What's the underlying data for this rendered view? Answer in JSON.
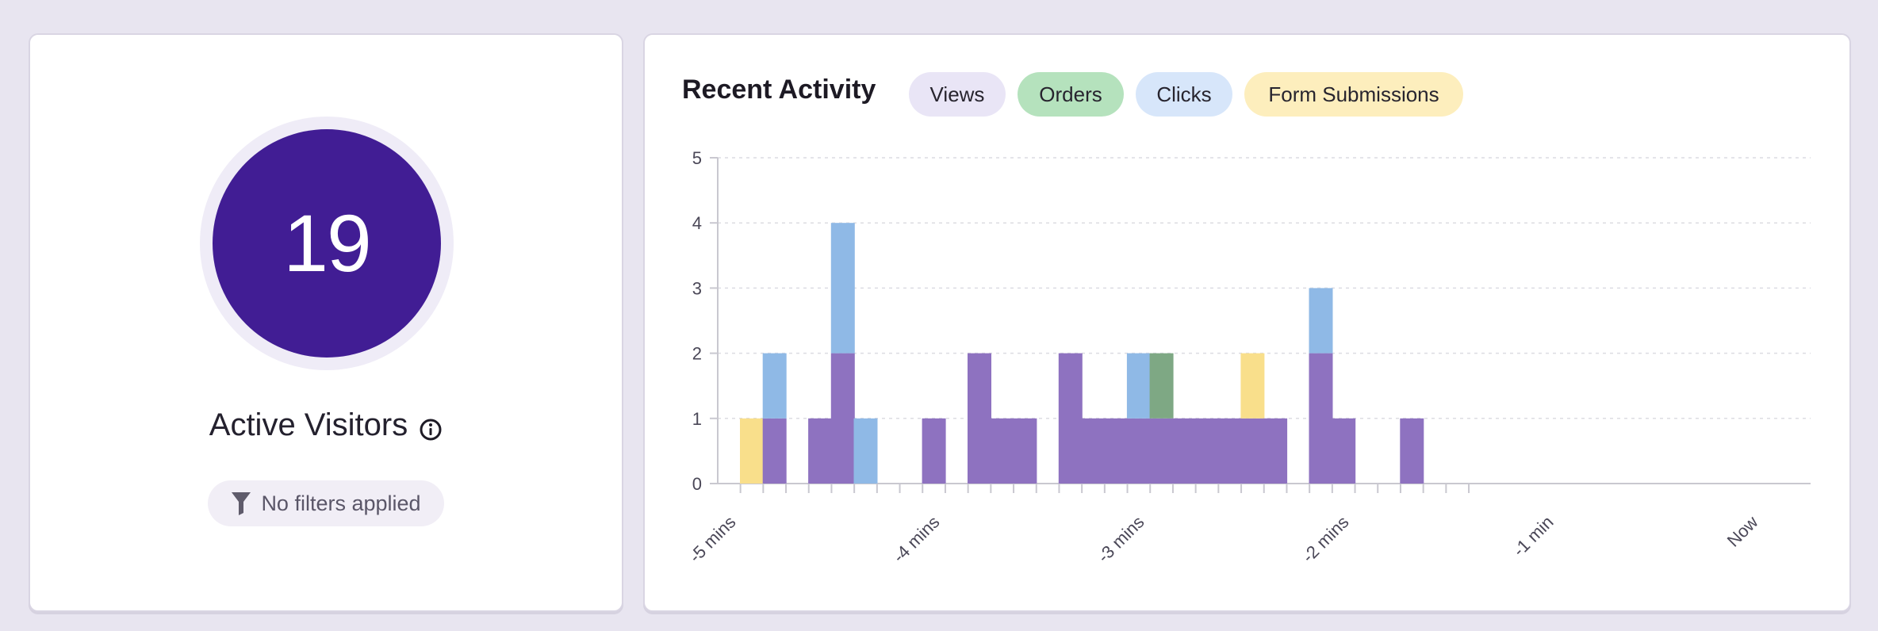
{
  "visitors": {
    "count": "19",
    "title": "Active Visitors",
    "filter_text": "No filters applied",
    "info_icon": "info-circle-icon",
    "filter_icon": "funnel-icon"
  },
  "activity": {
    "title": "Recent Activity",
    "legend": [
      {
        "label": "Views",
        "color": "#8e72c0"
      },
      {
        "label": "Orders",
        "color": "#7ea884"
      },
      {
        "label": "Clicks",
        "color": "#8fb9e6"
      },
      {
        "label": "Form Submissions",
        "color": "#f9df8b"
      }
    ]
  },
  "chart_data": {
    "type": "bar",
    "stacked": true,
    "grid": true,
    "ylim": [
      0,
      5
    ],
    "yticks": [
      "0",
      "1",
      "2",
      "3",
      "4",
      "5"
    ],
    "xtick_labels": [
      "-5 mins",
      "-4 mins",
      "-3 mins",
      "-2 mins",
      "-1 min",
      "Now"
    ],
    "series": [
      {
        "name": "Views",
        "color": "#8e72c0",
        "values": [
          0,
          1,
          0,
          1,
          2,
          0,
          0,
          0,
          1,
          0,
          2,
          1,
          1,
          0,
          2,
          1,
          1,
          1,
          1,
          1,
          1,
          1,
          1,
          1,
          0,
          2,
          1,
          0,
          0,
          1,
          0
        ]
      },
      {
        "name": "Orders",
        "color": "#7ea884",
        "values": [
          0,
          0,
          0,
          0,
          0,
          0,
          0,
          0,
          0,
          0,
          0,
          0,
          0,
          0,
          0,
          0,
          0,
          0,
          1,
          0,
          0,
          0,
          0,
          0,
          0,
          0,
          0,
          0,
          0,
          0,
          0
        ]
      },
      {
        "name": "Clicks",
        "color": "#8fb9e6",
        "values": [
          0,
          1,
          0,
          0,
          2,
          1,
          0,
          0,
          0,
          0,
          0,
          0,
          0,
          0,
          0,
          0,
          0,
          1,
          0,
          0,
          0,
          0,
          0,
          0,
          0,
          1,
          0,
          0,
          0,
          0,
          0
        ]
      },
      {
        "name": "Form Submissions",
        "color": "#f9df8b",
        "values": [
          1,
          0,
          0,
          0,
          0,
          0,
          0,
          0,
          0,
          0,
          0,
          0,
          0,
          0,
          0,
          0,
          0,
          0,
          0,
          0,
          0,
          0,
          1,
          0,
          0,
          0,
          0,
          0,
          0,
          0,
          0
        ]
      }
    ]
  }
}
